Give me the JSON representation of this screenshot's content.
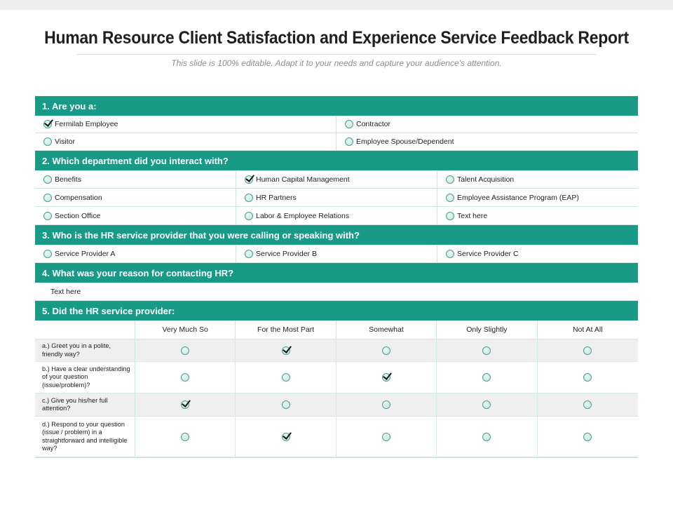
{
  "title": "Human Resource Client Satisfaction and Experience Service Feedback Report",
  "subtitle": "This slide is 100% editable. Adapt it to your needs and capture your audience's attention.",
  "q1": {
    "heading": "1. Are you a:",
    "options": [
      {
        "label": "Fermilab Employee",
        "checked": true
      },
      {
        "label": "Contractor",
        "checked": false
      },
      {
        "label": "Visitor",
        "checked": false
      },
      {
        "label": "Employee Spouse/Dependent",
        "checked": false
      }
    ]
  },
  "q2": {
    "heading": "2. Which department did you interact with?",
    "options": [
      {
        "label": "Benefits",
        "checked": false
      },
      {
        "label": "Human Capital Management",
        "checked": true
      },
      {
        "label": "Talent Acquisition",
        "checked": false
      },
      {
        "label": "Compensation",
        "checked": false
      },
      {
        "label": "HR Partners",
        "checked": false
      },
      {
        "label": "Employee Assistance Program (EAP)",
        "checked": false
      },
      {
        "label": "Section Office",
        "checked": false
      },
      {
        "label": "Labor & Employee Relations",
        "checked": false
      },
      {
        "label": "Text here",
        "checked": false
      }
    ]
  },
  "q3": {
    "heading": "3. Who is the HR service provider that you were calling or speaking with?",
    "options": [
      {
        "label": "Service Provider A",
        "checked": false
      },
      {
        "label": "Service Provider B",
        "checked": false
      },
      {
        "label": "Service Provider C",
        "checked": false
      }
    ]
  },
  "q4": {
    "heading": "4. What was your reason for contacting HR?",
    "answer": "Text here"
  },
  "q5": {
    "heading": "5. Did the HR service provider:",
    "columns": [
      "Very Much So",
      "For the Most Part",
      "Somewhat",
      "Only Slightly",
      "Not At All"
    ],
    "rows": [
      {
        "label": "a.) Greet you in a polite, friendly way?",
        "selected": 1
      },
      {
        "label": "b.) Have a clear understanding of your question (issue/problem)?",
        "selected": 2
      },
      {
        "label": "c.) Give you his/her full attention?",
        "selected": 0
      },
      {
        "label": "d.) Respond to your question (issue / problem) in a straightforward and intelligible way?",
        "selected": 1
      }
    ]
  },
  "colors": {
    "accent": "#199a86",
    "row_alt": "#efefef",
    "border": "#cfe3e3"
  }
}
